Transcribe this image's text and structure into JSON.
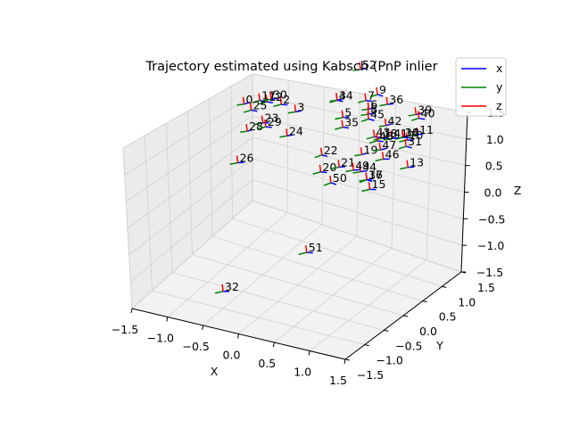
{
  "chart_data": {
    "type": "scatter",
    "projection": "3d",
    "title": "Trajectory estimated using Kabsch (PnP inlier",
    "xlabel": "X",
    "ylabel": "Y",
    "zlabel": "Z",
    "xlim": [
      -1.5,
      1.5
    ],
    "ylim": [
      -1.5,
      1.5
    ],
    "zlim": [
      -1.5,
      1.5
    ],
    "x_ticks": [
      "−1.5",
      "−1.0",
      "−0.5",
      "0.0",
      "0.5",
      "1.0",
      "1.5"
    ],
    "y_ticks": [
      "−1.5",
      "−1.0",
      "−0.5",
      "0.0",
      "0.5",
      "1.0",
      "1.5"
    ],
    "z_ticks": [
      "−1.5",
      "−1.0",
      "−0.5",
      "0.0",
      "0.5",
      "1.0",
      "1.5"
    ],
    "grid": true,
    "legend_position": "top-right",
    "legend": [
      {
        "name": "x",
        "color": "#0000ff"
      },
      {
        "name": "y",
        "color": "#008000"
      },
      {
        "name": "z",
        "color": "#ff0000"
      }
    ],
    "points": [
      {
        "label": "0",
        "x": -1.2,
        "y": 0.8,
        "z": 1.3
      },
      {
        "label": "2",
        "x": -0.8,
        "y": 1.0,
        "z": 1.3
      },
      {
        "label": "3",
        "x": -0.6,
        "y": 1.0,
        "z": 1.2
      },
      {
        "label": "4",
        "x": -0.2,
        "y": 1.3,
        "z": 1.4
      },
      {
        "label": "5",
        "x": 0.0,
        "y": 1.1,
        "z": 1.2
      },
      {
        "label": "6",
        "x": 0.3,
        "y": 1.2,
        "z": 1.4
      },
      {
        "label": "7",
        "x": 0.2,
        "y": 1.3,
        "z": 1.5
      },
      {
        "label": "8",
        "x": 0.3,
        "y": 1.2,
        "z": 1.3
      },
      {
        "label": "9",
        "x": 0.3,
        "y": 1.4,
        "z": 1.6
      },
      {
        "label": "10",
        "x": 0.9,
        "y": 1.1,
        "z": 1.0
      },
      {
        "label": "11",
        "x": 1.1,
        "y": 1.0,
        "z": 1.2
      },
      {
        "label": "12",
        "x": -1.0,
        "y": 1.0,
        "z": 1.3
      },
      {
        "label": "13",
        "x": 1.2,
        "y": 0.6,
        "z": 0.8
      },
      {
        "label": "14",
        "x": 0.9,
        "y": 1.0,
        "z": 1.1
      },
      {
        "label": "15",
        "x": 0.9,
        "y": 0.2,
        "z": 0.5
      },
      {
        "label": "16",
        "x": 0.8,
        "y": 0.3,
        "z": 0.6
      },
      {
        "label": "17",
        "x": -1.1,
        "y": 1.0,
        "z": 1.3
      },
      {
        "label": "18",
        "x": 0.6,
        "y": 1.0,
        "z": 1.0
      },
      {
        "label": "19",
        "x": 0.5,
        "y": 0.7,
        "z": 0.8
      },
      {
        "label": "20",
        "x": 0.1,
        "y": 0.4,
        "z": 0.5
      },
      {
        "label": "21",
        "x": 0.3,
        "y": 0.5,
        "z": 0.6
      },
      {
        "label": "22",
        "x": 0.0,
        "y": 0.6,
        "z": 0.7
      },
      {
        "label": "23",
        "x": -1.0,
        "y": 0.9,
        "z": 0.9
      },
      {
        "label": "24",
        "x": -0.6,
        "y": 0.8,
        "z": 0.8
      },
      {
        "label": "25",
        "x": -1.1,
        "y": 0.8,
        "z": 1.2
      },
      {
        "label": "26",
        "x": -1.0,
        "y": 0.3,
        "z": 0.4
      },
      {
        "label": "28",
        "x": -1.1,
        "y": 0.7,
        "z": 0.8
      },
      {
        "label": "29",
        "x": -0.9,
        "y": 0.8,
        "z": 0.9
      },
      {
        "label": "30",
        "x": -1.0,
        "y": 1.1,
        "z": 1.3
      },
      {
        "label": "31",
        "x": 1.0,
        "y": 0.9,
        "z": 1.0
      },
      {
        "label": "32",
        "x": -0.2,
        "y": -1.5,
        "z": -0.8
      },
      {
        "label": "34",
        "x": -0.2,
        "y": 1.3,
        "z": 1.4
      },
      {
        "label": "35",
        "x": 0.0,
        "y": 1.1,
        "z": 1.0
      },
      {
        "label": "36",
        "x": 0.5,
        "y": 1.3,
        "z": 1.5
      },
      {
        "label": "37",
        "x": 0.8,
        "y": 0.3,
        "z": 0.6
      },
      {
        "label": "38",
        "x": 0.9,
        "y": 1.0,
        "z": 1.1
      },
      {
        "label": "39",
        "x": 0.9,
        "y": 1.3,
        "z": 1.4
      },
      {
        "label": "40",
        "x": 1.0,
        "y": 1.2,
        "z": 1.4
      },
      {
        "label": "41",
        "x": 0.8,
        "y": 0.9,
        "z": 1.1
      },
      {
        "label": "42",
        "x": 0.6,
        "y": 1.1,
        "z": 1.2
      },
      {
        "label": "43",
        "x": 0.5,
        "y": 1.0,
        "z": 1.0
      },
      {
        "label": "44",
        "x": 0.6,
        "y": 0.5,
        "z": 0.6
      },
      {
        "label": "45",
        "x": 0.3,
        "y": 1.2,
        "z": 1.2
      },
      {
        "label": "46",
        "x": 0.8,
        "y": 0.7,
        "z": 0.8
      },
      {
        "label": "47",
        "x": 0.7,
        "y": 0.8,
        "z": 0.9
      },
      {
        "label": "48",
        "x": 0.6,
        "y": 0.9,
        "z": 1.0
      },
      {
        "label": "49",
        "x": 0.5,
        "y": 0.5,
        "z": 0.6
      },
      {
        "label": "50",
        "x": 0.3,
        "y": 0.3,
        "z": 0.4
      },
      {
        "label": "51",
        "x": 0.3,
        "y": -0.3,
        "z": -0.6
      },
      {
        "label": "52",
        "x": 0.0,
        "y": 1.5,
        "z": 2.0
      }
    ]
  }
}
